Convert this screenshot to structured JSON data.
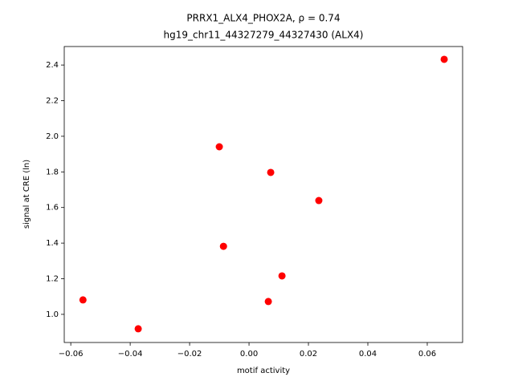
{
  "chart_data": {
    "type": "scatter",
    "title": "PRRX1_ALX4_PHOX2A, ρ = 0.74",
    "subtitle": "hg19_chr11_44327279_44327430 (ALX4)",
    "x_label": "motif activity",
    "y_label": "signal at CRE (ln)",
    "color": "#ff0000",
    "x": [
      0.0657,
      -0.01,
      0.0073,
      0.0235,
      -0.0086,
      0.0111,
      -0.0559,
      0.0065,
      -0.0373
    ],
    "y": [
      2.432,
      1.941,
      1.797,
      1.639,
      1.382,
      1.216,
      1.081,
      1.072,
      0.919
    ],
    "xlim": [
      -0.0622,
      0.0719
    ],
    "ylim": [
      0.842,
      2.504
    ],
    "xticks": [
      {
        "value": -0.06,
        "label": "−0.06"
      },
      {
        "value": -0.04,
        "label": "−0.04"
      },
      {
        "value": -0.02,
        "label": "−0.02"
      },
      {
        "value": 0,
        "label": "0.00"
      },
      0.02,
      0.04,
      0.06
    ],
    "yticks": [
      {
        "value": 1.0,
        "label": "1.0"
      },
      1.2,
      1.4,
      1.6,
      1.8,
      {
        "value": 2.0,
        "label": "2.0"
      },
      2.2,
      2.4
    ]
  }
}
